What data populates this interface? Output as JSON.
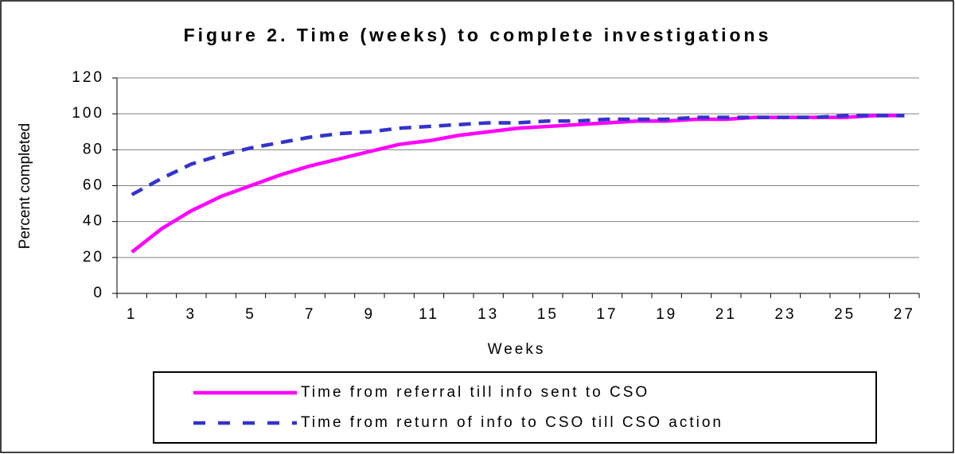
{
  "chart_data": {
    "type": "line",
    "title": "Figure 2. Time (weeks) to complete investigations",
    "x_label": "Weeks",
    "y_label": "Percent completed",
    "categories": [
      "1",
      null,
      "3",
      null,
      "5",
      null,
      "7",
      null,
      "9",
      null,
      "11",
      null,
      "13",
      null,
      "15",
      null,
      "17",
      null,
      "19",
      null,
      "21",
      null,
      "23",
      null,
      "25",
      null,
      "27"
    ],
    "series": [
      {
        "name": "Time from referral till info sent to CSO",
        "color": "#ff00ff",
        "dash": false,
        "values": [
          23,
          36,
          46,
          54,
          60,
          66,
          71,
          75,
          79,
          83,
          85,
          88,
          90,
          92,
          93,
          94,
          95,
          96,
          96,
          97,
          97,
          98,
          98,
          98,
          98,
          99,
          99
        ]
      },
      {
        "name": "Time from return of info to CSO till CSO action",
        "color": "#3333cc",
        "dash": true,
        "values": [
          55,
          64,
          72,
          77,
          81,
          84,
          87,
          89,
          90,
          92,
          93,
          94,
          95,
          95,
          96,
          96,
          97,
          97,
          97,
          98,
          98,
          98,
          98,
          98,
          99,
          99,
          99
        ]
      }
    ],
    "ylim": [
      0,
      120
    ],
    "yticks": [
      0,
      20,
      40,
      60,
      80,
      100,
      120
    ],
    "grid": true,
    "legend": "bottom"
  }
}
